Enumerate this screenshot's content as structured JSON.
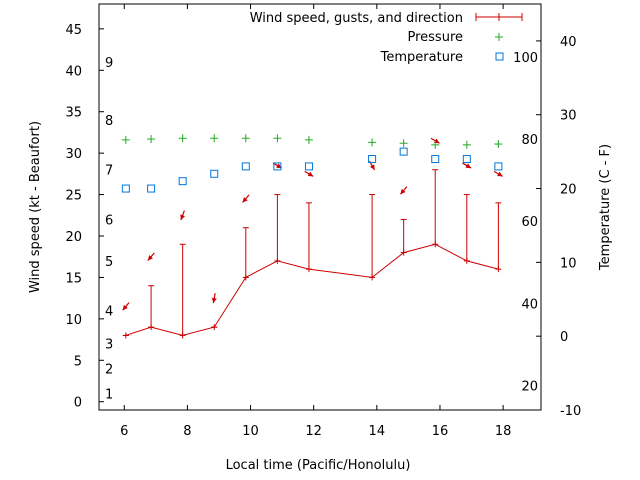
{
  "chart_data": {
    "type": "line",
    "title": "",
    "xlabel": "Local time (Pacific/Honolulu)",
    "ylabel": "Wind speed (kt - Beaufort)",
    "y2label": "Temperature (C - F)",
    "xlim": [
      5.2,
      19.2
    ],
    "ylim": [
      -1,
      48
    ],
    "y2lim": [
      -10,
      45
    ],
    "x_ticks": [
      6,
      8,
      10,
      12,
      14,
      16,
      18
    ],
    "y_ticks": [
      0,
      5,
      10,
      15,
      20,
      25,
      30,
      35,
      40,
      45
    ],
    "y2_ticks": [
      -10,
      0,
      10,
      20,
      30,
      40
    ],
    "beaufort_labels": [
      {
        "label": "1",
        "y": 1
      },
      {
        "label": "2",
        "y": 4
      },
      {
        "label": "3",
        "y": 7
      },
      {
        "label": "4",
        "y": 11
      },
      {
        "label": "5",
        "y": 17
      },
      {
        "label": "6",
        "y": 22
      },
      {
        "label": "7",
        "y": 28
      },
      {
        "label": "8",
        "y": 34
      },
      {
        "label": "9",
        "y": 41
      }
    ],
    "fahrenheit_labels": [
      {
        "label": "20",
        "t": -6.7
      },
      {
        "label": "40",
        "t": 4.4
      },
      {
        "label": "60",
        "t": 15.6
      },
      {
        "label": "80",
        "t": 26.7
      },
      {
        "label": "100",
        "t": 37.8
      }
    ],
    "legend_position": "top-right",
    "series": [
      {
        "name": "Wind speed, gusts, and direction",
        "color": "#cc0000",
        "x": [
          6.05,
          6.85,
          7.85,
          8.85,
          9.85,
          10.85,
          11.85,
          13.85,
          14.85,
          15.85,
          16.85,
          17.85
        ],
        "values": [
          8,
          9,
          8,
          9,
          15,
          17,
          16,
          15,
          18,
          19,
          17,
          16
        ],
        "gusts": [
          8,
          14,
          19,
          9,
          21,
          25,
          24,
          25,
          22,
          28,
          25,
          24
        ],
        "direction_deg": [
          40,
          40,
          20,
          10,
          40,
          300,
          300,
          330,
          40,
          300,
          300,
          300
        ]
      },
      {
        "name": "Pressure",
        "color": "#22aa22",
        "x": [
          6.05,
          6.85,
          7.85,
          8.85,
          9.85,
          10.85,
          11.85,
          13.85,
          14.85,
          15.85,
          16.85,
          17.85
        ],
        "values": [
          31.6,
          31.7,
          31.8,
          31.8,
          31.8,
          31.8,
          31.6,
          31.3,
          31.2,
          31.0,
          31.0,
          31.1
        ]
      },
      {
        "name": "Temperature",
        "color": "#0077dd",
        "axis": "y2",
        "x": [
          6.05,
          6.85,
          7.85,
          8.85,
          9.85,
          10.85,
          11.85,
          13.85,
          14.85,
          15.85,
          16.85,
          17.85
        ],
        "values": [
          20,
          20,
          21,
          22,
          23,
          23,
          23,
          24,
          25,
          24,
          24,
          23
        ]
      }
    ]
  }
}
